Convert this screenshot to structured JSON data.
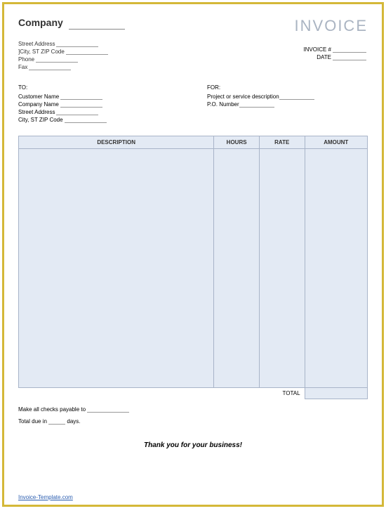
{
  "header": {
    "company_label": "Company",
    "invoice_title": "INVOICE"
  },
  "from": {
    "street_label": "Street Address",
    "city_label": "]City, ST  ZIP Code",
    "phone_label": "Phone",
    "fax_label": "Fax"
  },
  "meta": {
    "invoice_no_label": "INVOICE #",
    "date_label": "DATE"
  },
  "to": {
    "section_label": "TO:",
    "customer_label": "Customer Name",
    "company_label": "Company Name",
    "street_label": "Street Address",
    "city_label": "City, ST  ZIP Code"
  },
  "for": {
    "section_label": "FOR:",
    "project_label": "Project or service description",
    "po_label": "P.O. Number"
  },
  "table": {
    "col_description": "DESCRIPTION",
    "col_hours": "HOURS",
    "col_rate": "RATE",
    "col_amount": "AMOUNT",
    "total_label": "TOTAL",
    "header_bg": "#e3eaf4",
    "border_color": "#a8b4c8"
  },
  "footer": {
    "payable_prefix": "Make all checks payable to",
    "due_prefix": "Total due in",
    "due_suffix": "days.",
    "thanks": "Thank you for your business!",
    "link_text": "Invoice-Template.com"
  },
  "style": {
    "page_border_color": "#d4b838",
    "invoice_title_color": "#aab4c2"
  }
}
